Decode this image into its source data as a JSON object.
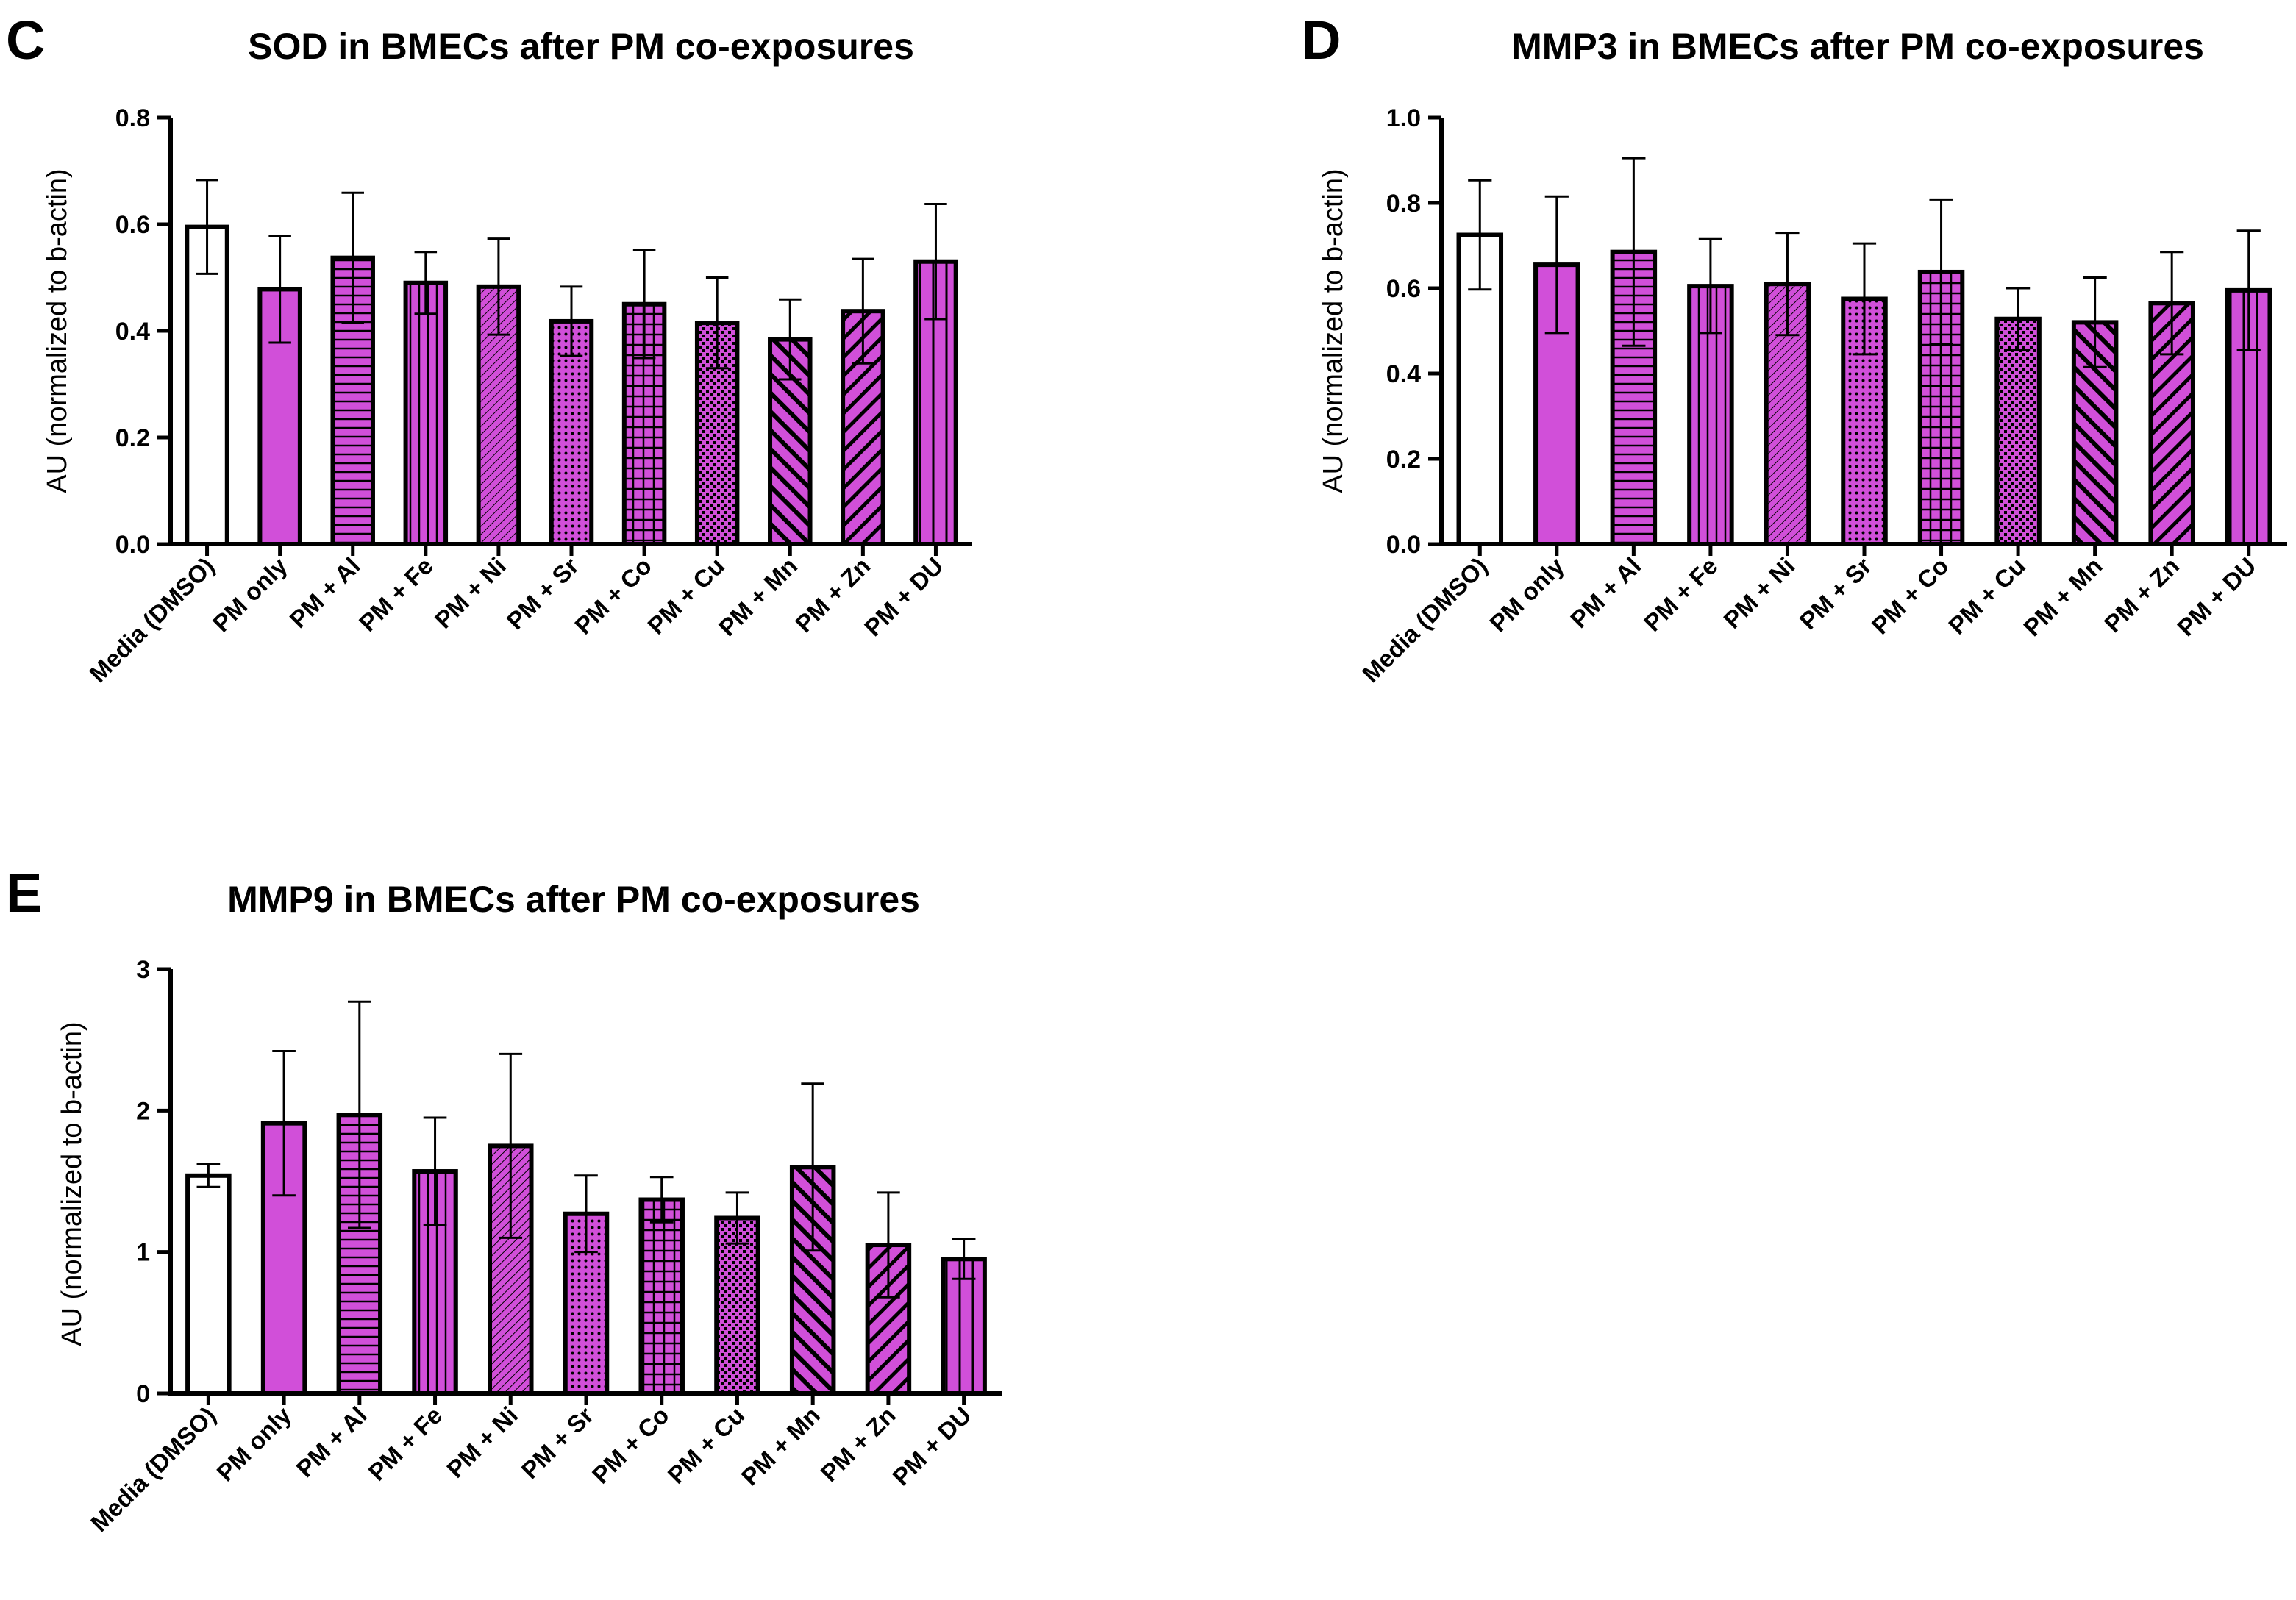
{
  "figure": {
    "bar_fill": "#d14fd9",
    "control_fill": "#ffffff",
    "stroke": "#000000"
  },
  "chart_data": [
    {
      "panel": "C",
      "type": "bar",
      "title": "SOD in BMECs after PM co-exposures",
      "ylabel": "AU (normalized to b-actin)",
      "xlabel": "",
      "ylim": [
        0,
        0.8
      ],
      "yticks": [
        "0.0",
        "0.2",
        "0.4",
        "0.6",
        "0.8"
      ],
      "categories": [
        "Media (DMSO)",
        "PM only",
        "PM + Al",
        "PM + Fe",
        "PM + Ni",
        "PM + Sr",
        "PM + Co",
        "PM + Cu",
        "PM + Mn",
        "PM + Zn",
        "PM + DU"
      ],
      "patterns": [
        "none",
        "solid",
        "hlines",
        "vlines",
        "hatch-fine",
        "dots",
        "grid",
        "checker",
        "diag-back",
        "diag-fwd",
        "vlines-wide"
      ],
      "values": [
        0.595,
        0.478,
        0.537,
        0.49,
        0.483,
        0.418,
        0.45,
        0.415,
        0.384,
        0.437,
        0.53
      ],
      "errors": [
        0.088,
        0.1,
        0.122,
        0.058,
        0.09,
        0.065,
        0.101,
        0.085,
        0.075,
        0.098,
        0.108
      ]
    },
    {
      "panel": "D",
      "type": "bar",
      "title": "MMP3 in BMECs after PM co-exposures",
      "ylabel": "AU (normalized to b-actin)",
      "xlabel": "",
      "ylim": [
        0,
        1.0
      ],
      "yticks": [
        "0.0",
        "0.2",
        "0.4",
        "0.6",
        "0.8",
        "1.0"
      ],
      "categories": [
        "Media (DMSO)",
        "PM only",
        "PM + Al",
        "PM + Fe",
        "PM + Ni",
        "PM + Sr",
        "PM + Co",
        "PM + Cu",
        "PM + Mn",
        "PM + Zn",
        "PM + DU"
      ],
      "patterns": [
        "none",
        "solid",
        "hlines",
        "vlines",
        "hatch-fine",
        "dots",
        "grid",
        "checker",
        "diag-back",
        "diag-fwd",
        "vlines-wide"
      ],
      "values": [
        0.725,
        0.655,
        0.685,
        0.605,
        0.61,
        0.575,
        0.638,
        0.528,
        0.52,
        0.565,
        0.595
      ],
      "errors": [
        0.128,
        0.16,
        0.22,
        0.11,
        0.12,
        0.13,
        0.17,
        0.072,
        0.105,
        0.12,
        0.14
      ]
    },
    {
      "panel": "E",
      "type": "bar",
      "title": "MMP9 in BMECs after PM co-exposures",
      "ylabel": "AU (normalized to b-actin)",
      "xlabel": "",
      "ylim": [
        0,
        3
      ],
      "yticks": [
        "0",
        "1",
        "2",
        "3"
      ],
      "categories": [
        "Media (DMSO)",
        "PM only",
        "PM + Al",
        "PM + Fe",
        "PM + Ni",
        "PM + Sr",
        "PM + Co",
        "PM + Cu",
        "PM + Mn",
        "PM + Zn",
        "PM + DU"
      ],
      "patterns": [
        "none",
        "solid",
        "hlines",
        "vlines",
        "hatch-fine",
        "dots",
        "grid",
        "checker",
        "diag-back",
        "diag-fwd",
        "vlines-wide"
      ],
      "values": [
        1.54,
        1.91,
        1.97,
        1.57,
        1.75,
        1.27,
        1.37,
        1.24,
        1.6,
        1.05,
        0.95
      ],
      "errors": [
        0.08,
        0.51,
        0.8,
        0.38,
        0.65,
        0.27,
        0.16,
        0.18,
        0.59,
        0.37,
        0.14
      ]
    }
  ]
}
